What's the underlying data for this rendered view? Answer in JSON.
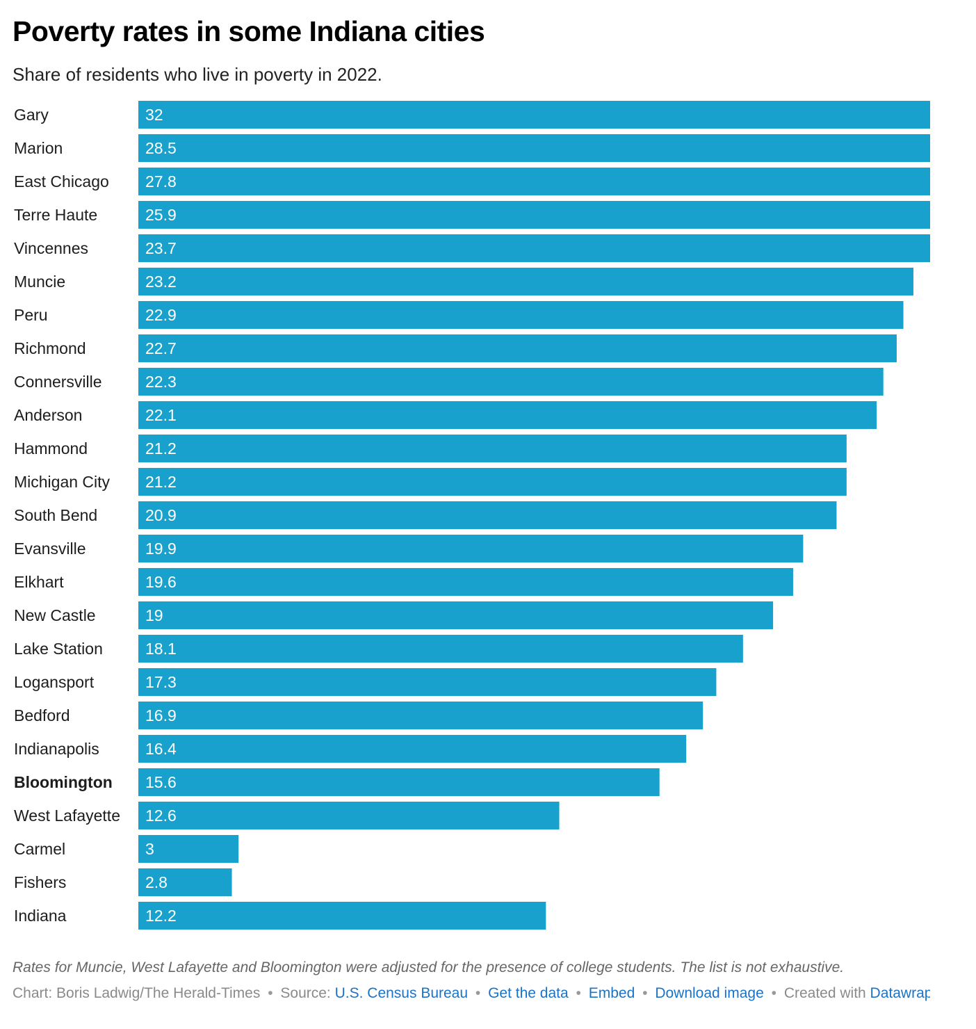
{
  "header": {
    "title": "Poverty rates in some Indiana cities",
    "subtitle": "Share of residents who live in poverty in 2022."
  },
  "colors": {
    "bar": "#18a1cd",
    "text": "#1d1d1d",
    "bar_label": "#ffffff",
    "link": "#1a73c8",
    "muted": "#8a8a8a"
  },
  "chart_data": {
    "type": "bar",
    "orientation": "horizontal",
    "categories": [
      "Gary",
      "Marion",
      "East Chicago",
      "Terre Haute",
      "Vincennes",
      "Muncie",
      "Peru",
      "Richmond",
      "Connersville",
      "Anderson",
      "Hammond",
      "Michigan City",
      "South Bend",
      "Evansville",
      "Elkhart",
      "New Castle",
      "Lake Station",
      "Logansport",
      "Bedford",
      "Indianapolis",
      "Bloomington",
      "West Lafayette",
      "Carmel",
      "Fishers",
      "Indiana"
    ],
    "values": [
      32,
      28.5,
      27.8,
      25.9,
      23.7,
      23.2,
      22.9,
      22.7,
      22.3,
      22.1,
      21.2,
      21.2,
      20.9,
      19.9,
      19.6,
      19,
      18.1,
      17.3,
      16.9,
      16.4,
      15.6,
      12.6,
      3,
      2.8,
      12.2
    ],
    "value_labels": [
      "32",
      "28.5",
      "27.8",
      "25.9",
      "23.7",
      "23.2",
      "22.9",
      "22.7",
      "22.3",
      "22.1",
      "21.2",
      "21.2",
      "20.9",
      "19.9",
      "19.6",
      "19",
      "18.1",
      "17.3",
      "16.9",
      "16.4",
      "15.6",
      "12.6",
      "3",
      "2.8",
      "12.2"
    ],
    "highlighted": [
      "Bloomington"
    ],
    "xlim": [
      0,
      23.7
    ],
    "bar_overflow_capped": true,
    "xlabel": "",
    "ylabel": "",
    "grid": false,
    "legend": "none"
  },
  "footer": {
    "note": "Rates for Muncie, West Lafayette and Bloomington were adjusted for the presence of college students. The list is not exhaustive.",
    "credit_prefix": "Chart: Boris Ladwig/The Herald-Times",
    "source_prefix": "Source:",
    "source_link": "U.S. Census Bureau",
    "get_data": "Get the data",
    "embed": "Embed",
    "download": "Download image",
    "created_with_prefix": "Created with",
    "created_with_link": "Datawrapper",
    "separator": "•"
  }
}
